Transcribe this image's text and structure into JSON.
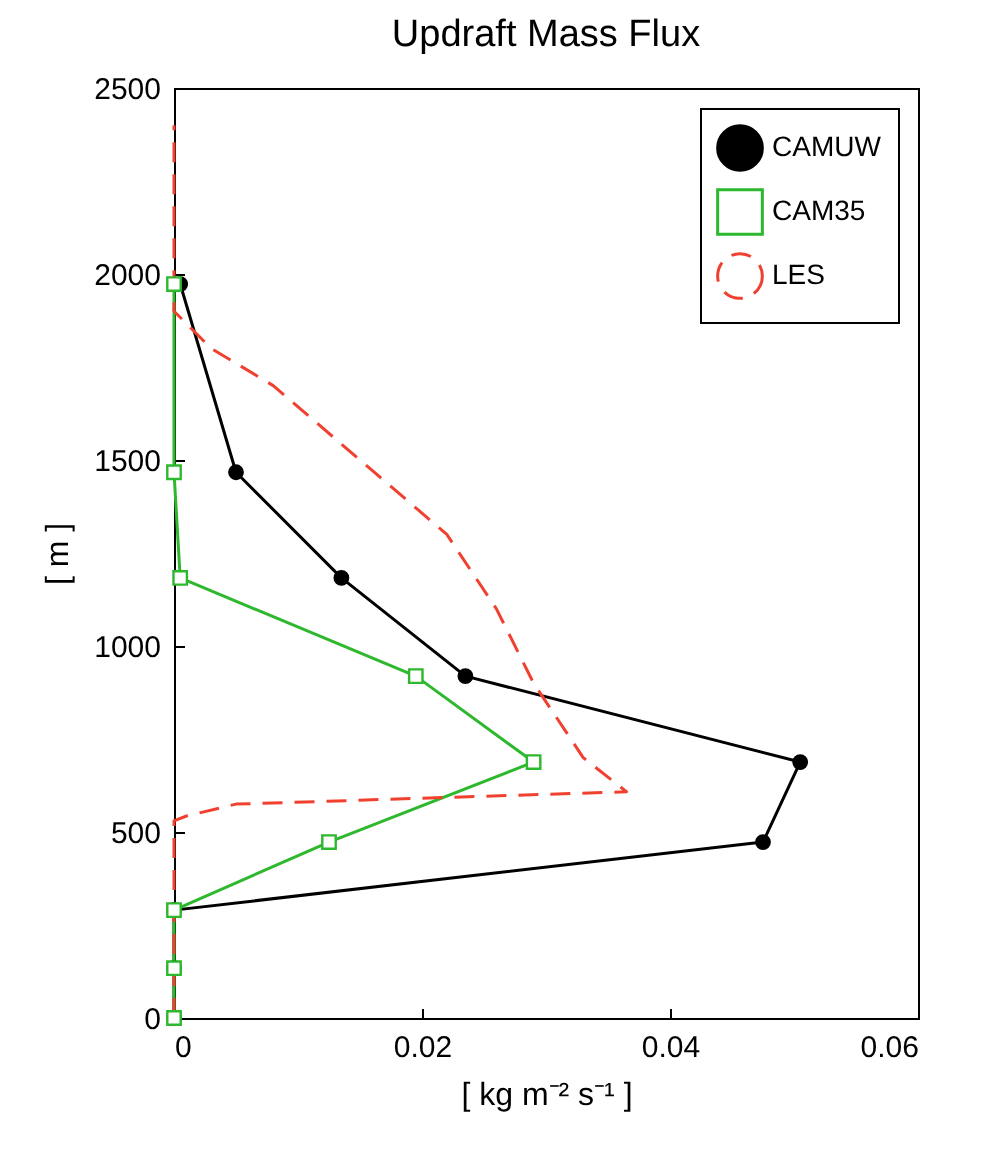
{
  "chart_data": {
    "type": "line",
    "title": "Updraft Mass Flux",
    "xlabel": "[ kg m⁻² s⁻¹ ]",
    "ylabel": "[ m ]",
    "xlim": [
      0,
      0.06
    ],
    "xticks": [
      0,
      0.02,
      0.04,
      0.06
    ],
    "ylim": [
      0,
      2500
    ],
    "yticks": [
      0,
      500,
      1000,
      1500,
      2000,
      2500
    ],
    "legend": "top right",
    "grid": false,
    "series": [
      {
        "name": "CAMUW",
        "color": "#000000",
        "marker": "circle",
        "line_style": "solid",
        "x": [
          0,
          0,
          0,
          0.0475,
          0.0505,
          0.0235,
          0.0135,
          0.005,
          0.0005
        ],
        "values": [
          0,
          134,
          290,
          473,
          688,
          919,
          1183,
          1467,
          1973
        ]
      },
      {
        "name": "CAM35",
        "color": "#2eb82e",
        "marker": "square",
        "line_style": "solid",
        "x": [
          0,
          0,
          0,
          0.0125,
          0.029,
          0.0195,
          0.0005,
          0,
          0
        ],
        "values": [
          0,
          134,
          290,
          473,
          688,
          919,
          1183,
          1467,
          1973
        ]
      },
      {
        "name": "LES",
        "color": "#f04030",
        "marker": "none",
        "line_style": "dashed",
        "x": [
          0,
          0,
          0.001,
          0.005,
          0.0365,
          0.033,
          0.029,
          0.026,
          0.022,
          0.015,
          0.008,
          0.003,
          0,
          0
        ],
        "values": [
          0,
          530,
          543,
          575,
          608,
          700,
          900,
          1100,
          1300,
          1500,
          1700,
          1800,
          1900,
          2400
        ]
      }
    ]
  }
}
